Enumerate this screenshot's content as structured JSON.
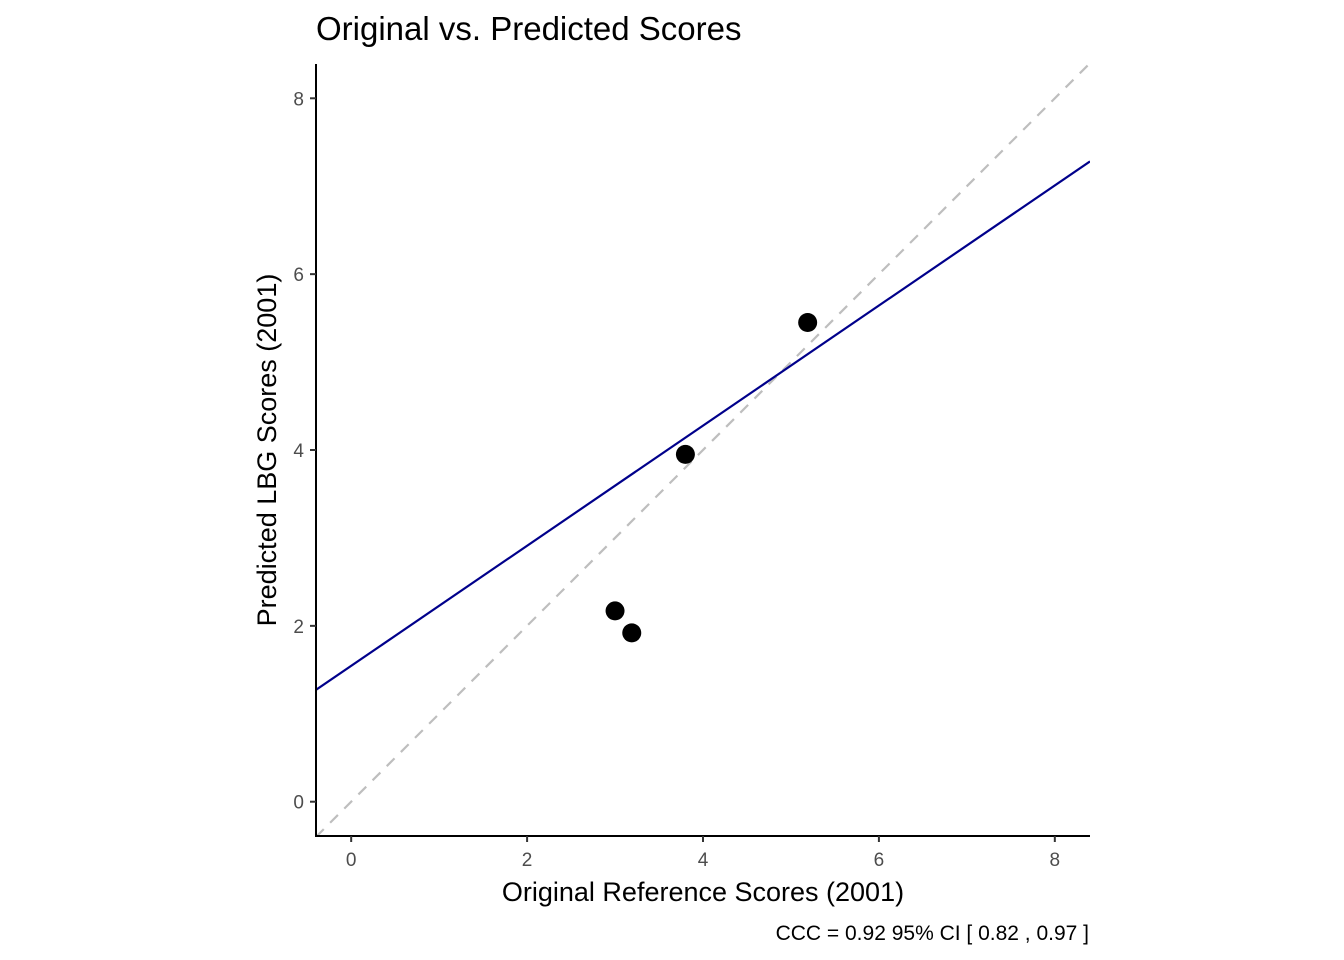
{
  "chart_data": {
    "type": "scatter",
    "title": "Original vs. Predicted Scores",
    "xlabel": "Original Reference Scores (2001)",
    "ylabel": "Predicted LBG Scores (2001)",
    "caption": "CCC = 0.92 95% CI [ 0.82 , 0.97 ]",
    "xlim": [
      -0.4,
      8.4
    ],
    "ylim": [
      -0.39,
      8.39
    ],
    "x_ticks": [
      "0",
      "2",
      "4",
      "6",
      "8"
    ],
    "y_ticks": [
      "0",
      "2",
      "4",
      "6",
      "8"
    ],
    "grid": false,
    "points": [
      {
        "x": 3.0,
        "y": 2.17
      },
      {
        "x": 3.19,
        "y": 1.92
      },
      {
        "x": 3.8,
        "y": 3.95
      },
      {
        "x": 5.19,
        "y": 5.45
      }
    ],
    "fit_line": {
      "intercept": 1.545,
      "slope": 0.683,
      "color": "#00008B"
    },
    "identity_line": {
      "intercept": 0,
      "slope": 1,
      "color": "#BEBEBE",
      "style": "dashed"
    },
    "point_color": "#000000"
  }
}
